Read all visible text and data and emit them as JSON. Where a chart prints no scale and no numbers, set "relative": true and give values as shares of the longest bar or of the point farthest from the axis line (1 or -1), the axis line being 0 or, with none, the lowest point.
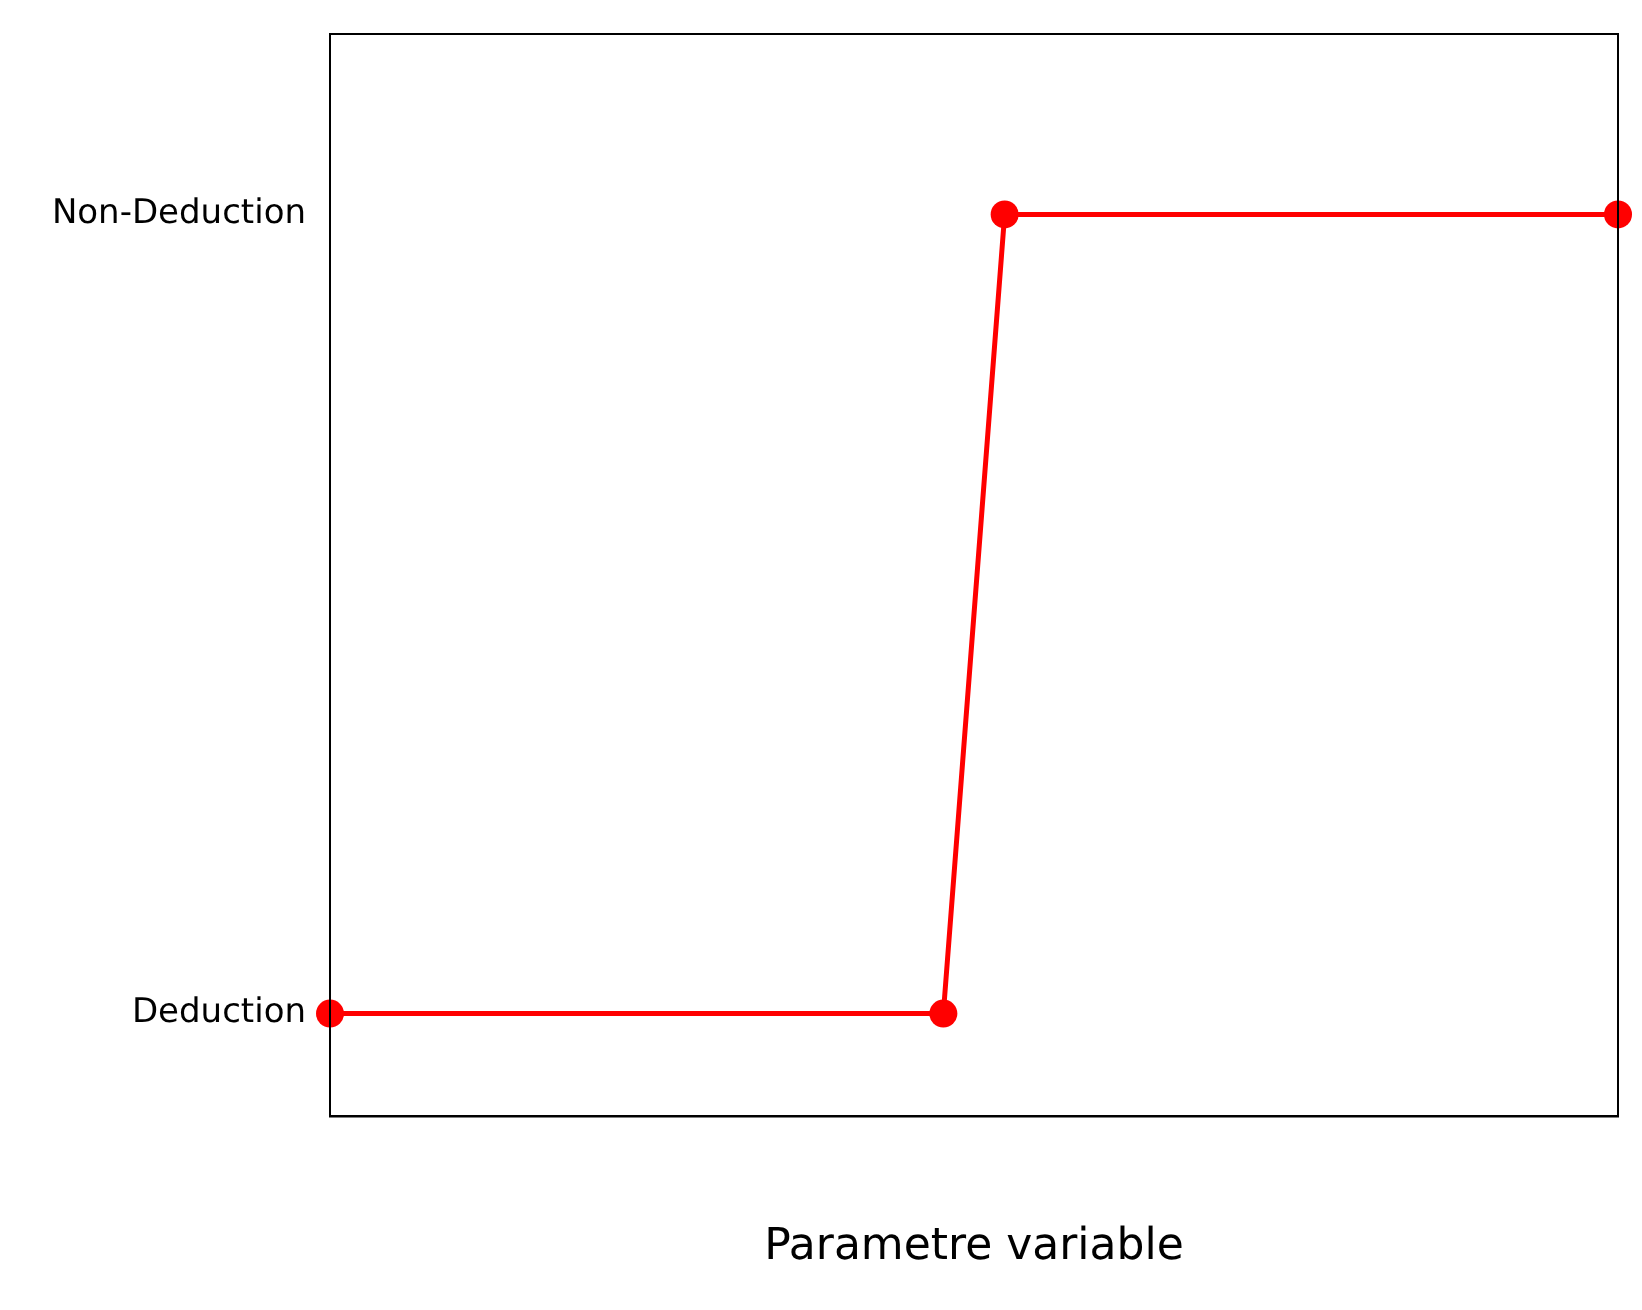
{
  "chart_data": {
    "type": "line",
    "xlabel": "Parametre variable",
    "categories": [
      null,
      null,
      null,
      null,
      null,
      null,
      null,
      null,
      null,
      null,
      null,
      null,
      null,
      null,
      null,
      null,
      null,
      null,
      null,
      null,
      null,
      null
    ],
    "series": [
      {
        "color": "#ff0000",
        "values": [
          0.114,
          null,
          null,
          null,
          null,
          null,
          null,
          null,
          null,
          null,
          0.114,
          1,
          null,
          null,
          null,
          null,
          null,
          null,
          null,
          null,
          null,
          1
        ]
      }
    ],
    "relative": true,
    "annotations": [
      "Deduction",
      "Non-Deduction"
    ],
    "grid": false,
    "legend": false,
    "marker": "circle",
    "line_style": "solid"
  }
}
